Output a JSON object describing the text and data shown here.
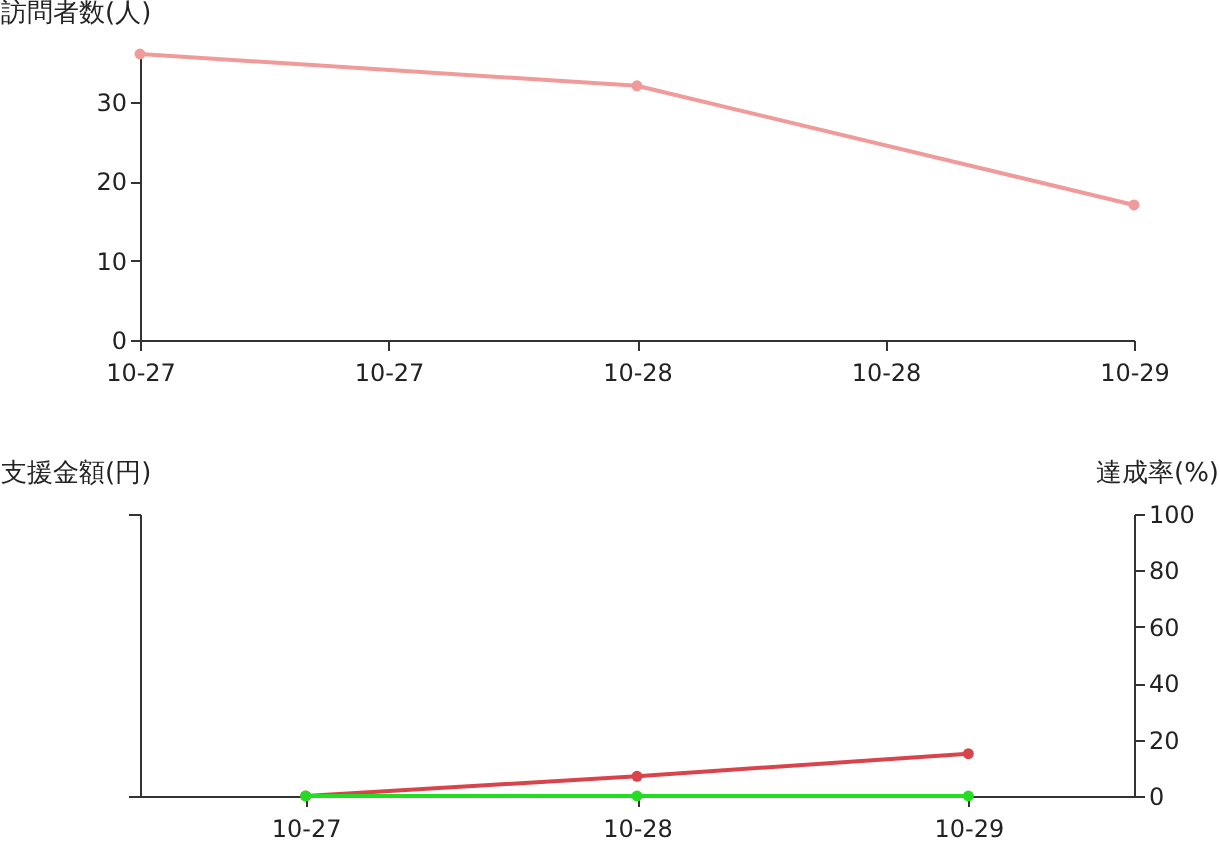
{
  "chart_data": [
    {
      "type": "line",
      "ylabel": "訪問者数(人)",
      "categories": [
        "10-27",
        "10-27",
        "10-28",
        "10-28",
        "10-29"
      ],
      "ylim": [
        0,
        36
      ],
      "yticks": [
        0,
        10,
        20,
        30
      ],
      "grid": false,
      "marker": "circle",
      "series": [
        {
          "color": "#f09a9a",
          "values": [
            36,
            null,
            32,
            null,
            17
          ]
        }
      ]
    },
    {
      "type": "line",
      "ylabel": "支援金額(円)",
      "y2label": "達成率(%)",
      "categories": [
        "10-27",
        "10-28",
        "10-29"
      ],
      "y2lim": [
        0,
        100
      ],
      "y2ticks": [
        0,
        20,
        40,
        60,
        80,
        100
      ],
      "grid": false,
      "marker": "circle",
      "series": [
        {
          "color": "#d9434b",
          "axis": "y2",
          "values": [
            0,
            7,
            15
          ]
        },
        {
          "color": "#22dd22",
          "axis": "y2",
          "values": [
            0,
            0,
            0
          ]
        }
      ]
    }
  ]
}
